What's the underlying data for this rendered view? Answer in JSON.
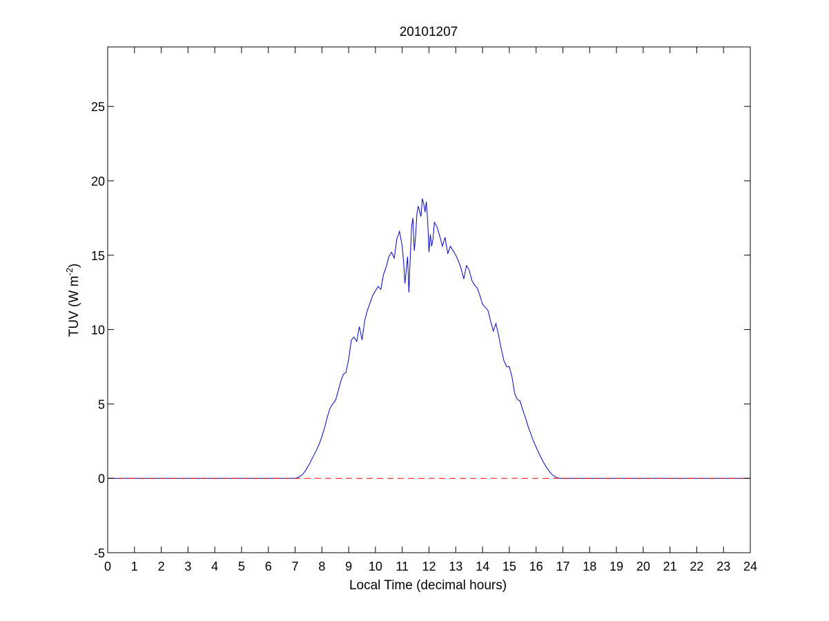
{
  "chart_data": {
    "type": "line",
    "title": "20101207",
    "xlabel": "Local Time (decimal hours)",
    "ylabel": "TUV (W m-2)",
    "ylabel_parts": {
      "main": "TUV (W m",
      "superscript": "-2",
      "close": ")"
    },
    "xlim": [
      0,
      24
    ],
    "ylim": [
      -5,
      29
    ],
    "xticks": [
      "0",
      "1",
      "2",
      "3",
      "4",
      "5",
      "6",
      "7",
      "8",
      "9",
      "10",
      "11",
      "12",
      "13",
      "14",
      "15",
      "16",
      "17",
      "18",
      "19",
      "20",
      "21",
      "22",
      "23",
      "24"
    ],
    "yticks": [
      "-5",
      "0",
      "5",
      "10",
      "15",
      "20",
      "25"
    ],
    "grid": false,
    "legend": "none",
    "series": [
      {
        "color": "#0000c8",
        "style": "solid",
        "x": [
          0,
          7.0,
          7.1,
          7.2,
          7.3,
          7.4,
          7.5,
          7.6,
          7.7,
          7.8,
          7.9,
          8.0,
          8.1,
          8.2,
          8.3,
          8.4,
          8.5,
          8.6,
          8.7,
          8.8,
          8.9,
          9.0,
          9.1,
          9.2,
          9.3,
          9.4,
          9.5,
          9.6,
          9.7,
          9.8,
          9.9,
          10.0,
          10.1,
          10.2,
          10.3,
          10.4,
          10.5,
          10.6,
          10.7,
          10.8,
          10.9,
          11.0,
          11.05,
          11.1,
          11.2,
          11.25,
          11.3,
          11.35,
          11.4,
          11.45,
          11.5,
          11.55,
          11.6,
          11.7,
          11.75,
          11.8,
          11.85,
          11.9,
          11.95,
          12.0,
          12.05,
          12.1,
          12.15,
          12.2,
          12.3,
          12.4,
          12.5,
          12.6,
          12.7,
          12.8,
          12.9,
          13.0,
          13.1,
          13.2,
          13.3,
          13.4,
          13.5,
          13.6,
          13.7,
          13.8,
          13.9,
          14.0,
          14.1,
          14.2,
          14.3,
          14.4,
          14.5,
          14.6,
          14.7,
          14.8,
          14.9,
          15.0,
          15.1,
          15.2,
          15.3,
          15.4,
          15.5,
          15.6,
          15.7,
          15.8,
          15.9,
          16.0,
          16.1,
          16.2,
          16.3,
          16.4,
          16.5,
          16.6,
          16.7,
          16.8,
          16.9,
          17.0,
          24
        ],
        "y": [
          0,
          0,
          0.05,
          0.15,
          0.3,
          0.55,
          0.85,
          1.2,
          1.55,
          1.9,
          2.3,
          2.8,
          3.4,
          4.1,
          4.7,
          5.0,
          5.2,
          5.8,
          6.5,
          7.0,
          7.1,
          8.0,
          9.3,
          9.5,
          9.2,
          10.2,
          9.3,
          10.6,
          11.3,
          11.8,
          12.3,
          12.6,
          12.9,
          12.7,
          13.7,
          14.2,
          14.9,
          15.2,
          14.8,
          16.1,
          16.6,
          15.6,
          14.6,
          13.1,
          14.9,
          12.5,
          14.8,
          16.9,
          17.5,
          15.3,
          16.3,
          17.8,
          18.3,
          17.6,
          18.8,
          18.5,
          17.9,
          18.6,
          17.3,
          15.2,
          16.4,
          15.6,
          16.1,
          17.2,
          16.9,
          16.3,
          15.6,
          16.2,
          15.1,
          15.6,
          15.3,
          15.0,
          14.6,
          14.1,
          13.4,
          14.3,
          14.0,
          13.3,
          13.0,
          12.8,
          12.3,
          11.7,
          11.5,
          11.3,
          10.6,
          9.9,
          10.4,
          9.6,
          8.7,
          7.9,
          7.5,
          7.5,
          6.8,
          5.7,
          5.3,
          5.2,
          4.6,
          4.1,
          3.5,
          3.0,
          2.5,
          2.1,
          1.7,
          1.35,
          1.0,
          0.7,
          0.45,
          0.25,
          0.1,
          0.03,
          0.0,
          0.0,
          0
        ]
      },
      {
        "color": "#ff0000",
        "style": "dashed",
        "x": [
          0,
          24
        ],
        "y": [
          0,
          0
        ]
      }
    ]
  }
}
